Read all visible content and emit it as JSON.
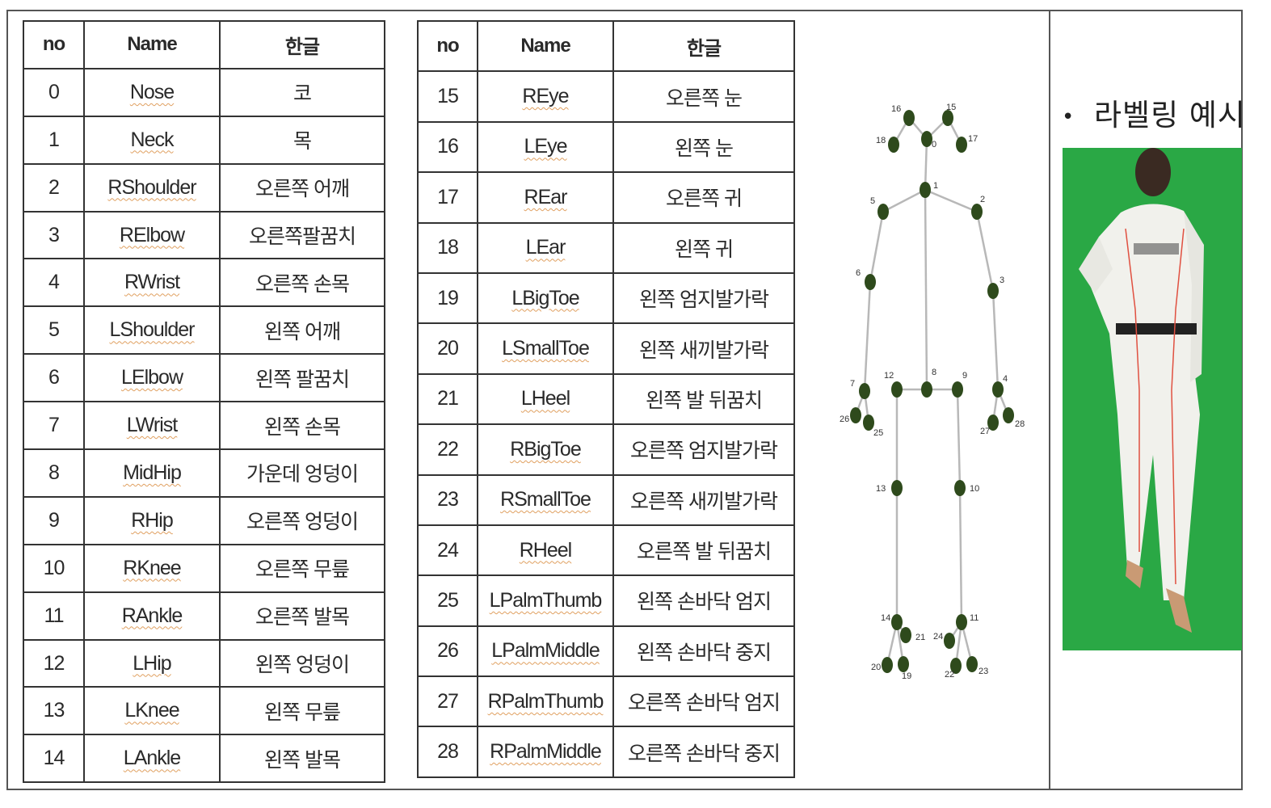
{
  "table_left": {
    "headers": [
      "no",
      "Name",
      "한글"
    ],
    "rows": [
      [
        "0",
        "Nose",
        "코"
      ],
      [
        "1",
        "Neck",
        "목"
      ],
      [
        "2",
        "RShoulder",
        "오른쪽 어깨"
      ],
      [
        "3",
        "RElbow",
        "오른쪽팔꿈치"
      ],
      [
        "4",
        "RWrist",
        "오른쪽 손목"
      ],
      [
        "5",
        "LShoulder",
        "왼쪽 어깨"
      ],
      [
        "6",
        "LElbow",
        "왼쪽 팔꿈치"
      ],
      [
        "7",
        "LWrist",
        "왼쪽 손목"
      ],
      [
        "8",
        "MidHip",
        "가운데 엉덩이"
      ],
      [
        "9",
        "RHip",
        "오른쪽 엉덩이"
      ],
      [
        "10",
        "RKnee",
        "오른쪽 무릎"
      ],
      [
        "11",
        "RAnkle",
        "오른쪽 발목"
      ],
      [
        "12",
        "LHip",
        "왼쪽 엉덩이"
      ],
      [
        "13",
        "LKnee",
        "왼쪽 무릎"
      ],
      [
        "14",
        "LAnkle",
        "왼쪽 발목"
      ]
    ]
  },
  "table_right": {
    "headers": [
      "no",
      "Name",
      "한글"
    ],
    "rows": [
      [
        "15",
        "REye",
        "오른쪽 눈"
      ],
      [
        "16",
        "LEye",
        "왼쪽 눈"
      ],
      [
        "17",
        "REar",
        "오른쪽 귀"
      ],
      [
        "18",
        "LEar",
        "왼쪽 귀"
      ],
      [
        "19",
        "LBigToe",
        "왼쪽 엄지발가락"
      ],
      [
        "20",
        "LSmallToe",
        "왼쪽 새끼발가락"
      ],
      [
        "21",
        "LHeel",
        "왼쪽 발 뒤꿈치"
      ],
      [
        "22",
        "RBigToe",
        "오른쪽 엄지발가락"
      ],
      [
        "23",
        "RSmallToe",
        "오른쪽 새끼발가락"
      ],
      [
        "24",
        "RHeel",
        "오른쪽 발 뒤꿈치"
      ],
      [
        "25",
        "LPalmThumb",
        "왼쪽 손바닥 엄지"
      ],
      [
        "26",
        "LPalmMiddle",
        "왼쪽 손바닥 중지"
      ],
      [
        "27",
        "RPalmThumb",
        "오른쪽 손바닥 엄지"
      ],
      [
        "28",
        "RPalmMiddle",
        "오른쪽 손바닥 중지"
      ]
    ]
  },
  "skeleton": {
    "joint_labels": [
      "0",
      "1",
      "2",
      "3",
      "4",
      "5",
      "6",
      "7",
      "8",
      "9",
      "10",
      "11",
      "12",
      "13",
      "14",
      "15",
      "16",
      "17",
      "18",
      "19",
      "20",
      "21",
      "22",
      "23",
      "24",
      "25",
      "26",
      "27",
      "28"
    ],
    "joint_color": "#2e4a1c",
    "bone_color": "#b8b8b8"
  },
  "example": {
    "bullet": "•",
    "title": "라벨링 예시",
    "photo_background": "#2aa845"
  }
}
